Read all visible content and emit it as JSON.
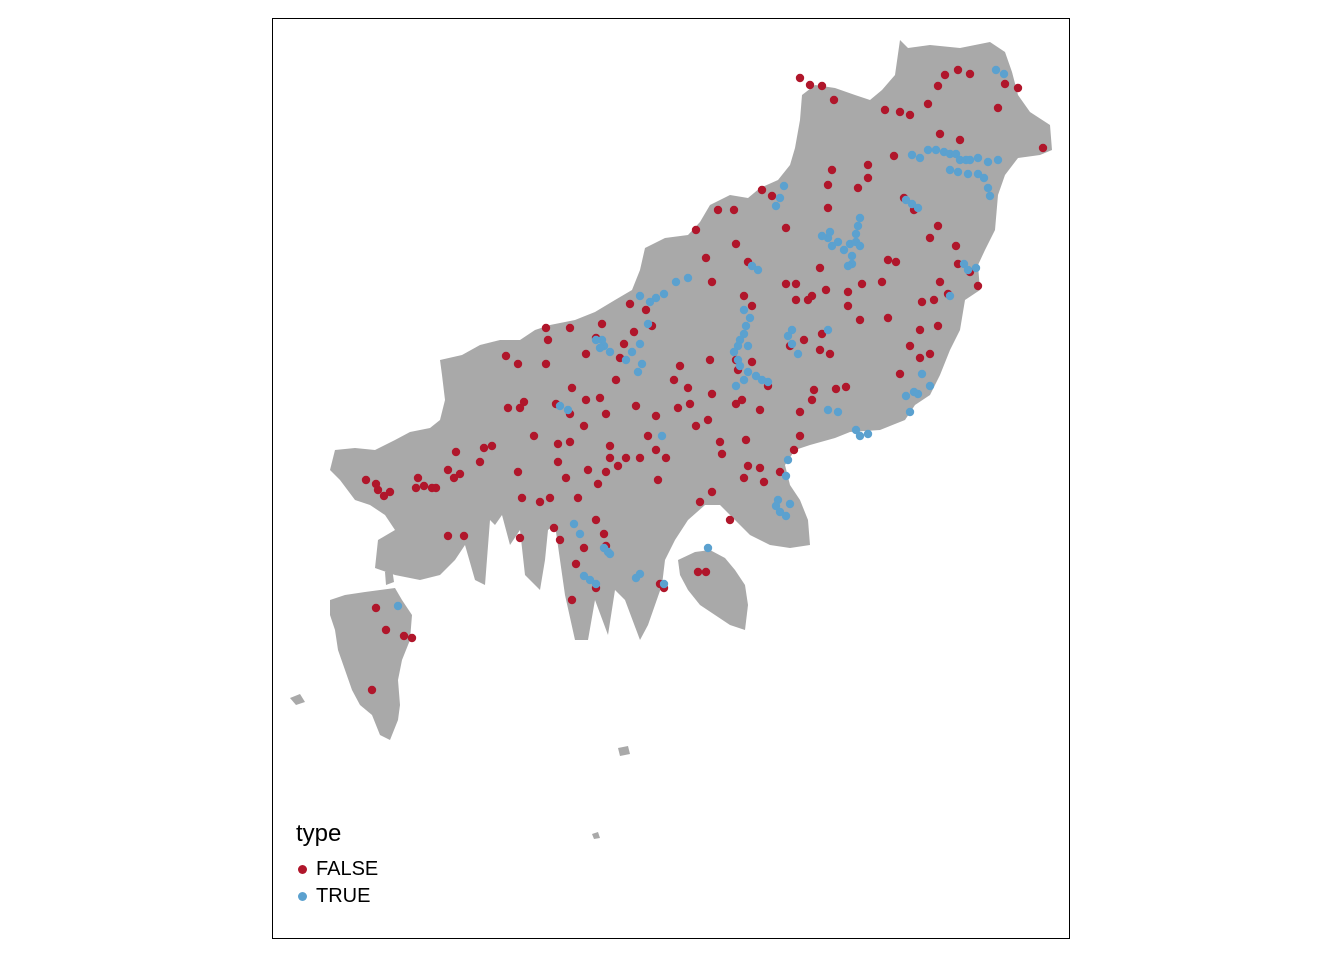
{
  "map": {
    "land_color": "#A9A9A9",
    "background_color": "#FFFFFF",
    "legend": {
      "title": "type",
      "items": [
        {
          "label": "FALSE",
          "color": "#B0162B"
        },
        {
          "label": "TRUE",
          "color": "#5BA1CF"
        }
      ]
    }
  }
}
